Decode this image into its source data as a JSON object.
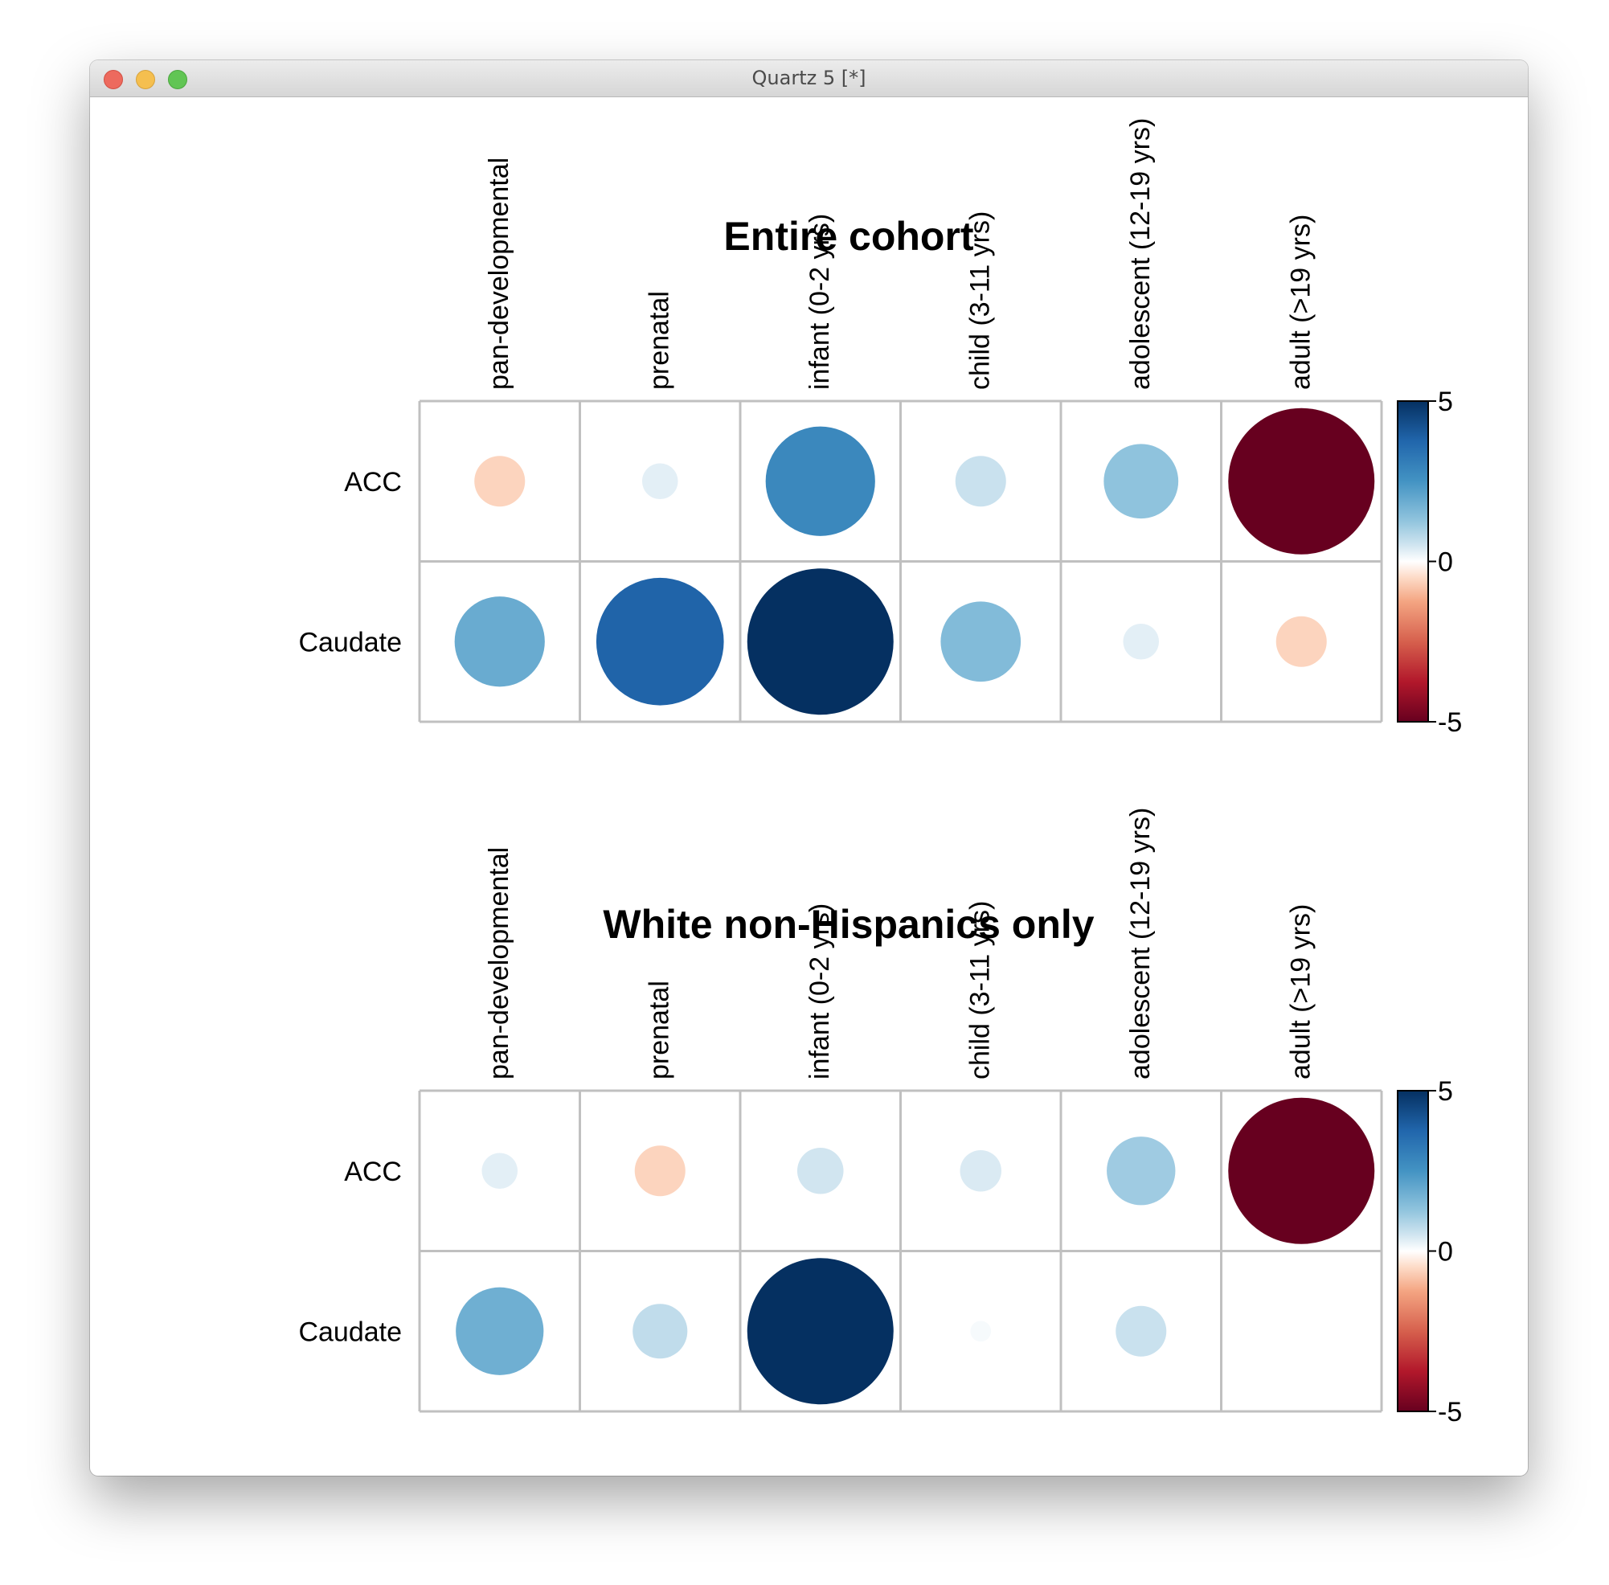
{
  "window": {
    "title": "Quartz 5 [*]"
  },
  "colors": {
    "positive_max": "#053061",
    "neutral": "#ffffff",
    "negative_max": "#67001f",
    "grid": "#c0c0c0"
  },
  "chart_data": [
    {
      "type": "heatmap",
      "title": "Entire cohort",
      "columns": [
        "pan-developmental",
        "prenatal",
        "infant (0-2 yrs)",
        "child (3-11 yrs)",
        "adolescent (12-19 yrs)",
        "adult (>19 yrs)"
      ],
      "rows": [
        "ACC",
        "Caudate"
      ],
      "values": [
        [
          -0.6,
          0.3,
          2.8,
          0.6,
          1.3,
          -5.0
        ],
        [
          1.9,
          3.8,
          5.0,
          1.5,
          0.3,
          -0.6
        ]
      ],
      "legend": {
        "ticks": [
          "5",
          "0",
          "-5"
        ],
        "range": [
          -5,
          5
        ],
        "position": "right"
      }
    },
    {
      "type": "heatmap",
      "title": "White non-Hispanics only",
      "columns": [
        "pan-developmental",
        "prenatal",
        "infant (0-2 yrs)",
        "child (3-11 yrs)",
        "adolescent (12-19 yrs)",
        "adult (>19 yrs)"
      ],
      "rows": [
        "ACC",
        "Caudate"
      ],
      "values": [
        [
          0.3,
          -0.6,
          0.5,
          0.4,
          1.1,
          -5.0
        ],
        [
          1.8,
          0.7,
          5.0,
          0.1,
          0.6,
          0.0
        ]
      ],
      "legend": {
        "ticks": [
          "5",
          "0",
          "-5"
        ],
        "range": [
          -5,
          5
        ],
        "position": "right"
      }
    }
  ]
}
